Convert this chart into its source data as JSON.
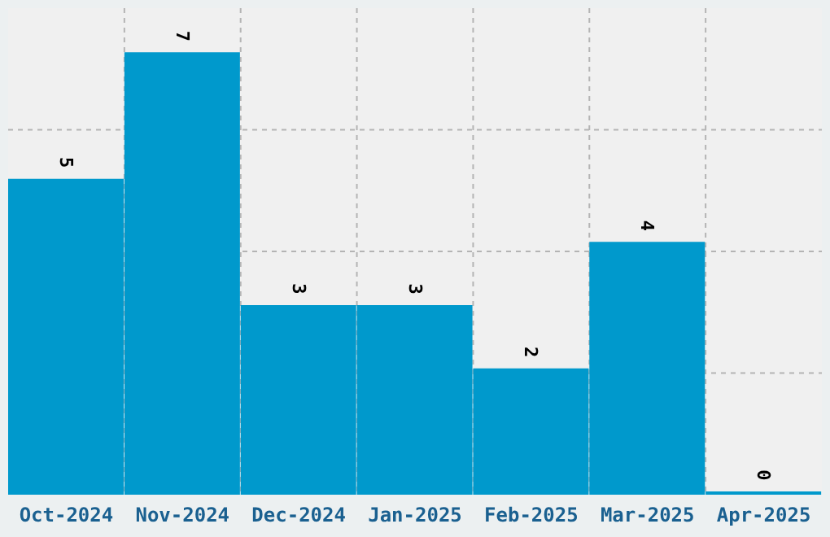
{
  "chart_data": {
    "type": "bar",
    "categories": [
      "Oct-2024",
      "Nov-2024",
      "Dec-2024",
      "Jan-2025",
      "Feb-2025",
      "Mar-2025",
      "Apr-2025"
    ],
    "values": [
      5,
      7,
      3,
      3,
      2,
      4,
      0
    ],
    "color": "#0099cc",
    "ylim": [
      0,
      7.7
    ],
    "tick_labels": "x",
    "grid": true,
    "data_labels": true
  }
}
